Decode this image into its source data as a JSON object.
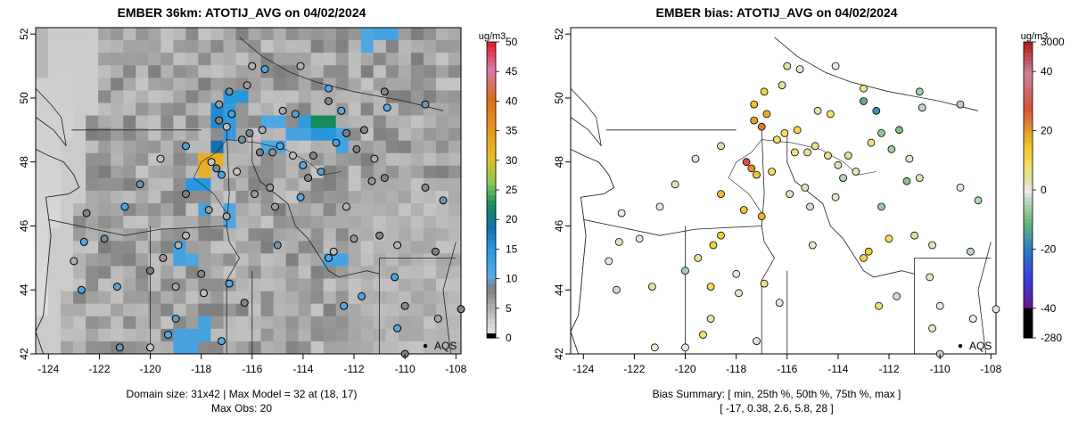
{
  "chart_data": [
    {
      "type": "map",
      "title": "EMBER 36km: ATOTIJ_AVG on 04/02/2024",
      "xlim": [
        -124.5,
        -107.8
      ],
      "ylim": [
        42.0,
        52.2
      ],
      "x_ticks": [
        -124,
        -122,
        -120,
        -118,
        -116,
        -114,
        -112,
        -110,
        -108
      ],
      "x_tick_labels": [
        "-124",
        "-122",
        "-120",
        "-118",
        "-116",
        "-114",
        "-112",
        "-110",
        "-108"
      ],
      "y_ticks": [
        42,
        44,
        46,
        48,
        50,
        52
      ],
      "y_tick_labels": [
        "42",
        "44",
        "46",
        "48",
        "50",
        "52"
      ],
      "legend_unit": "ug/m3",
      "legend_range": [
        0,
        50
      ],
      "legend_ticks": [
        0,
        5,
        10,
        15,
        20,
        25,
        30,
        35,
        40,
        45,
        50
      ],
      "legend_tick_labels": [
        "0",
        "5",
        "10",
        "15",
        "20",
        "25",
        "30",
        "35",
        "40",
        "45",
        "50"
      ],
      "footer_line1": "Domain size: 31x42 | Max Model = 32 at (18, 17)",
      "footer_line2": "Max Obs: 20",
      "aqs_label": "AQS",
      "aqs_point": [
        -109.2,
        42.25
      ],
      "hotspots": [
        {
          "lon": -116.6,
          "lat": 50.0,
          "value": 15
        },
        {
          "lon": -117.0,
          "lat": 49.8,
          "value": 14
        },
        {
          "lon": -117.3,
          "lat": 49.4,
          "value": 16
        },
        {
          "lon": -117.0,
          "lat": 49.1,
          "value": 14
        },
        {
          "lon": -113.6,
          "lat": 49.2,
          "value": 14
        },
        {
          "lon": -113.1,
          "lat": 49.3,
          "value": 22
        },
        {
          "lon": -113.4,
          "lat": 48.9,
          "value": 15
        },
        {
          "lon": -112.4,
          "lat": 48.7,
          "value": 12
        },
        {
          "lon": -110.6,
          "lat": 52.1,
          "value": 12
        },
        {
          "lon": -111.4,
          "lat": 51.8,
          "value": 11
        },
        {
          "lon": -115.2,
          "lat": 49.3,
          "value": 11
        },
        {
          "lon": -117.8,
          "lat": 48.0,
          "value": 32
        },
        {
          "lon": -117.6,
          "lat": 48.2,
          "value": 18
        },
        {
          "lon": -118.1,
          "lat": 47.3,
          "value": 15
        },
        {
          "lon": -117.9,
          "lat": 46.5,
          "value": 12
        },
        {
          "lon": -116.9,
          "lat": 46.4,
          "value": 11
        },
        {
          "lon": -118.4,
          "lat": 44.9,
          "value": 11
        },
        {
          "lon": -118.8,
          "lat": 45.1,
          "value": 12
        },
        {
          "lon": -117.8,
          "lat": 42.8,
          "value": 12
        },
        {
          "lon": -118.7,
          "lat": 42.4,
          "value": 12
        },
        {
          "lon": -112.9,
          "lat": 45.0,
          "value": 12
        },
        {
          "lon": -115.2,
          "lat": 48.4,
          "value": 11
        },
        {
          "lon": -114.1,
          "lat": 48.8,
          "value": 12
        }
      ],
      "obs_sites": [
        [
          -120.0,
          42.2
        ],
        [
          -119.3,
          42.6
        ],
        [
          -119.0,
          43.1
        ],
        [
          -120.0,
          44.6
        ],
        [
          -119.0,
          44.1
        ],
        [
          -118.0,
          44.5
        ],
        [
          -119.5,
          45.0
        ],
        [
          -118.9,
          45.4
        ],
        [
          -118.6,
          45.7
        ],
        [
          -117.7,
          46.5
        ],
        [
          -118.6,
          47.0
        ],
        [
          -117.0,
          46.3
        ],
        [
          -115.0,
          45.4
        ],
        [
          -115.1,
          46.6
        ],
        [
          -115.3,
          47.2
        ],
        [
          -114.1,
          46.9
        ],
        [
          -113.0,
          45.0
        ],
        [
          -112.8,
          45.2
        ],
        [
          -112.0,
          45.6
        ],
        [
          -111.0,
          45.7
        ],
        [
          -110.3,
          45.4
        ],
        [
          -108.8,
          45.2
        ],
        [
          -108.5,
          46.8
        ],
        [
          -109.2,
          47.2
        ],
        [
          -110.8,
          47.5
        ],
        [
          -111.3,
          47.4
        ],
        [
          -112.3,
          46.6
        ],
        [
          -113.3,
          47.7
        ],
        [
          -113.6,
          48.2
        ],
        [
          -112.7,
          48.6
        ],
        [
          -112.3,
          48.9
        ],
        [
          -111.6,
          49.0
        ],
        [
          -110.7,
          49.7
        ],
        [
          -109.2,
          49.8
        ],
        [
          -113.0,
          50.3
        ],
        [
          -114.1,
          51.0
        ],
        [
          -115.5,
          50.9
        ],
        [
          -116.0,
          51.0
        ],
        [
          -116.2,
          50.4
        ],
        [
          -116.9,
          50.2
        ],
        [
          -117.3,
          49.8
        ],
        [
          -117.3,
          49.3
        ],
        [
          -117.0,
          49.1
        ],
        [
          -116.4,
          48.7
        ],
        [
          -115.7,
          48.3
        ],
        [
          -115.2,
          48.3
        ],
        [
          -114.4,
          48.2
        ],
        [
          -114.0,
          47.9
        ],
        [
          -116.6,
          47.7
        ],
        [
          -117.2,
          47.6
        ],
        [
          -117.4,
          47.8
        ],
        [
          -117.6,
          48.0
        ],
        [
          -118.6,
          48.5
        ],
        [
          -119.6,
          48.1
        ],
        [
          -120.4,
          47.3
        ],
        [
          -121.0,
          46.6
        ],
        [
          -122.5,
          46.4
        ],
        [
          -121.8,
          45.6
        ],
        [
          -122.6,
          45.5
        ],
        [
          -123.0,
          44.9
        ],
        [
          -122.7,
          44.0
        ],
        [
          -121.3,
          44.1
        ],
        [
          -121.2,
          42.2
        ],
        [
          -117.2,
          42.4
        ],
        [
          -112.4,
          43.5
        ],
        [
          -111.7,
          43.8
        ],
        [
          -110.0,
          43.5
        ],
        [
          -110.4,
          44.4
        ],
        [
          -108.7,
          43.1
        ],
        [
          -107.8,
          43.4
        ],
        [
          -110.0,
          42.0
        ],
        [
          -110.3,
          42.8
        ],
        [
          -116.3,
          43.6
        ],
        [
          -116.9,
          44.2
        ],
        [
          -117.9,
          43.9
        ],
        [
          -115.9,
          47.0
        ],
        [
          -116.1,
          48.9
        ],
        [
          -114.8,
          49.6
        ],
        [
          -114.3,
          49.5
        ],
        [
          -113.0,
          49.9
        ],
        [
          -112.5,
          49.6
        ],
        [
          -111.9,
          48.4
        ],
        [
          -111.2,
          48.1
        ],
        [
          -110.8,
          50.2
        ],
        [
          -116.8,
          49.5
        ],
        [
          -115.6,
          49.0
        ],
        [
          -114.9,
          48.5
        ],
        [
          -113.8,
          47.5
        ]
      ]
    },
    {
      "type": "map",
      "title": "EMBER bias: ATOTIJ_AVG on 04/02/2024",
      "xlim": [
        -124.5,
        -107.8
      ],
      "ylim": [
        42.0,
        52.2
      ],
      "x_ticks": [
        -124,
        -122,
        -120,
        -118,
        -116,
        -114,
        -112,
        -110,
        -108
      ],
      "x_tick_labels": [
        "-124",
        "-122",
        "-120",
        "-118",
        "-116",
        "-114",
        "-112",
        "-110",
        "-108"
      ],
      "y_ticks": [
        42,
        44,
        46,
        48,
        50,
        52
      ],
      "y_tick_labels": [
        "42",
        "44",
        "46",
        "48",
        "50",
        "52"
      ],
      "legend_unit": "ug/m3",
      "legend_stops": [
        {
          "label": "3000",
          "value": 3000
        },
        {
          "label": "40",
          "value": 40
        },
        {
          "label": "20",
          "value": 20
        },
        {
          "label": "0",
          "value": 0
        },
        {
          "label": "-20",
          "value": -20
        },
        {
          "label": "-40",
          "value": -40
        },
        {
          "label": "-280",
          "value": -280
        }
      ],
      "footer_line1": "Bias Summary: [ min, 25th %, 50th %, 75th %, max ]",
      "footer_line2": "[ -17,   0.38,   2.6,   5.8,   28 ]",
      "aqs_label": "AQS",
      "aqs_point": [
        -109.2,
        42.25
      ],
      "bias_sites": [
        [
          -120.0,
          42.2,
          1
        ],
        [
          -119.3,
          42.6,
          8
        ],
        [
          -119.0,
          43.1,
          3
        ],
        [
          -120.0,
          44.6,
          -5
        ],
        [
          -119.0,
          44.1,
          10
        ],
        [
          -118.0,
          44.5,
          1
        ],
        [
          -119.5,
          45.0,
          6
        ],
        [
          -118.9,
          45.4,
          12
        ],
        [
          -118.6,
          45.7,
          14
        ],
        [
          -117.7,
          46.5,
          15
        ],
        [
          -118.6,
          47.0,
          16
        ],
        [
          -117.0,
          46.3,
          18
        ],
        [
          -115.0,
          45.4,
          2
        ],
        [
          -115.1,
          46.6,
          -2
        ],
        [
          -115.3,
          47.2,
          4
        ],
        [
          -114.1,
          46.9,
          2
        ],
        [
          -113.0,
          45.0,
          12
        ],
        [
          -112.8,
          45.2,
          14
        ],
        [
          -112.0,
          45.6,
          9
        ],
        [
          -111.0,
          45.7,
          5
        ],
        [
          -110.3,
          45.4,
          3
        ],
        [
          -108.8,
          45.2,
          -3
        ],
        [
          -108.5,
          46.8,
          -4
        ],
        [
          -109.2,
          47.2,
          2
        ],
        [
          -110.8,
          47.5,
          4
        ],
        [
          -111.3,
          47.4,
          -8
        ],
        [
          -112.3,
          46.6,
          -6
        ],
        [
          -113.3,
          47.7,
          3
        ],
        [
          -113.6,
          48.2,
          5
        ],
        [
          -112.7,
          48.6,
          6
        ],
        [
          -112.3,
          48.9,
          -7
        ],
        [
          -111.6,
          49.0,
          -9
        ],
        [
          -110.7,
          49.7,
          -3
        ],
        [
          -109.2,
          49.8,
          -4
        ],
        [
          -113.0,
          50.3,
          7
        ],
        [
          -114.1,
          51.0,
          1
        ],
        [
          -115.5,
          50.9,
          2
        ],
        [
          -116.0,
          51.0,
          4
        ],
        [
          -116.2,
          50.4,
          5
        ],
        [
          -116.9,
          50.2,
          12
        ],
        [
          -117.3,
          49.8,
          16
        ],
        [
          -117.3,
          49.3,
          20
        ],
        [
          -117.0,
          49.1,
          24
        ],
        [
          -116.4,
          48.7,
          9
        ],
        [
          -115.7,
          48.3,
          7
        ],
        [
          -115.2,
          48.3,
          5
        ],
        [
          -114.4,
          48.2,
          6
        ],
        [
          -114.0,
          47.9,
          4
        ],
        [
          -116.6,
          47.7,
          10
        ],
        [
          -117.2,
          47.6,
          15
        ],
        [
          -117.4,
          47.8,
          22
        ],
        [
          -117.6,
          48.0,
          28
        ],
        [
          -118.6,
          48.5,
          4
        ],
        [
          -119.6,
          48.1,
          -1
        ],
        [
          -120.4,
          47.3,
          3
        ],
        [
          -121.0,
          46.6,
          1
        ],
        [
          -122.5,
          46.4,
          0
        ],
        [
          -121.8,
          45.6,
          2
        ],
        [
          -122.6,
          45.5,
          3
        ],
        [
          -123.0,
          44.9,
          1
        ],
        [
          -122.7,
          44.0,
          -2
        ],
        [
          -121.3,
          44.1,
          5
        ],
        [
          -121.2,
          42.2,
          2
        ],
        [
          -117.2,
          42.4,
          -1
        ],
        [
          -112.4,
          43.5,
          7
        ],
        [
          -111.7,
          43.8,
          -2
        ],
        [
          -110.0,
          43.5,
          1
        ],
        [
          -110.4,
          44.4,
          3
        ],
        [
          -108.7,
          43.1,
          0
        ],
        [
          -107.8,
          43.4,
          -1
        ],
        [
          -110.0,
          42.0,
          -3
        ],
        [
          -110.3,
          42.8,
          2
        ],
        [
          -116.3,
          43.6,
          1
        ],
        [
          -116.9,
          44.2,
          6
        ],
        [
          -117.9,
          43.9,
          2
        ],
        [
          -115.9,
          47.0,
          3
        ],
        [
          -116.1,
          48.9,
          9
        ],
        [
          -114.8,
          49.6,
          4
        ],
        [
          -114.3,
          49.5,
          8
        ],
        [
          -113.0,
          49.9,
          -12
        ],
        [
          -112.5,
          49.6,
          -17
        ],
        [
          -111.9,
          48.4,
          -6
        ],
        [
          -111.2,
          48.1,
          2
        ],
        [
          -110.8,
          50.2,
          -5
        ],
        [
          -116.8,
          49.5,
          18
        ],
        [
          -115.6,
          49.0,
          11
        ],
        [
          -114.9,
          48.5,
          6
        ],
        [
          -113.8,
          47.5,
          -4
        ]
      ]
    }
  ]
}
